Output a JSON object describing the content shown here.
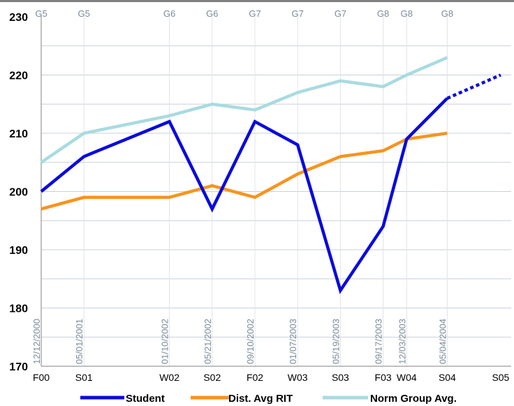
{
  "chart_data": {
    "type": "line",
    "ylim": [
      170,
      230
    ],
    "yticks": [
      170,
      180,
      190,
      200,
      210,
      220,
      230
    ],
    "x_positions": [
      0,
      1,
      3,
      4,
      5,
      6,
      7,
      8,
      8.55,
      9.5,
      10.75
    ],
    "x_tick_labels": [
      "F00",
      "S01",
      "W02",
      "S02",
      "F02",
      "W03",
      "S03",
      "F03",
      "W04",
      "S04",
      "S05"
    ],
    "grades": [
      "G5",
      "G5",
      "G6",
      "G6",
      "G7",
      "G7",
      "G7",
      "G8",
      "G8",
      "G8"
    ],
    "dates": [
      "12/12/2000",
      "05/01/2001",
      "01/10/2002",
      "05/21/2002",
      "09/10/2002",
      "01/07/2003",
      "05/19/2003",
      "09/17/2003",
      "12/03/2003",
      "05/04/2004"
    ],
    "series": [
      {
        "name": "Student",
        "color": "#0a0adc",
        "values": [
          200,
          206,
          212,
          197,
          212,
          208,
          183,
          194,
          209,
          216
        ]
      },
      {
        "name": "Dist. Avg RIT",
        "color": "#f7941d",
        "values": [
          197,
          199,
          199,
          201,
          199,
          203,
          206,
          207,
          209,
          210
        ]
      },
      {
        "name": "Norm Group Avg.",
        "color": "#a8dbe0",
        "values": [
          205,
          210,
          213,
          215,
          214,
          217,
          219,
          218,
          220,
          223
        ]
      }
    ],
    "projection": {
      "series": "Student",
      "from": [
        9.5,
        216
      ],
      "to": [
        10.75,
        220
      ],
      "style": "dotted"
    },
    "grid": "horizontal",
    "legend_position": "bottom"
  }
}
